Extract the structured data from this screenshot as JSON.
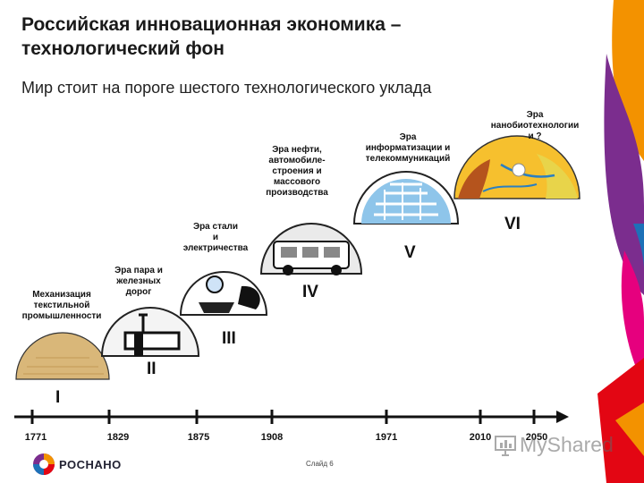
{
  "title": "Российская инновационная экономика –\nтехнологический фон",
  "subtitle": "Мир стоит на пороге шестого технологического уклада",
  "eras": [
    {
      "label": "Механизация\nтекстильной\nпромышленности",
      "numeral": "I"
    },
    {
      "label": "Эра пара и\nжелезных\nдорог",
      "numeral": "II"
    },
    {
      "label": "Эра стали\nи\nэлектричества",
      "numeral": "III"
    },
    {
      "label": "Эра нефти,\nавтомобиле-\nстроения и\nмассового\nпроизводства",
      "numeral": "IV"
    },
    {
      "label": "Эра\nинформатизации и\nтелекоммуникаций",
      "numeral": "V"
    },
    {
      "label": "Эра\nнанобиотехнологии\nи ?",
      "numeral": "VI"
    }
  ],
  "timeline_years": [
    "1771",
    "1829",
    "1875",
    "1908",
    "1971",
    "2010",
    "2050"
  ],
  "footer": {
    "logo_text": "РОСНАНО",
    "slide_label": "Слайд 6",
    "watermark": "MyShared"
  },
  "colors": {
    "band_purple": "#7b2d8e",
    "band_orange": "#f39200",
    "band_red": "#e30613",
    "band_blue": "#1d71b8",
    "timeline": "#111111"
  }
}
